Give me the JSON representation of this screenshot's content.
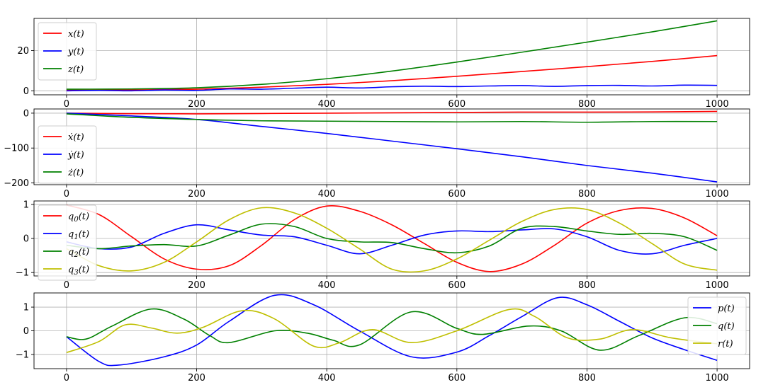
{
  "chart_data": [
    {
      "type": "line",
      "grid": true,
      "legend": "upper-left",
      "xlim": [
        -50,
        1050
      ],
      "ylim": [
        -2,
        36
      ],
      "xticks": [
        0,
        200,
        400,
        600,
        800,
        1000
      ],
      "yticks": [
        0,
        20
      ],
      "series": [
        {
          "name": "x(t)",
          "color": "#ff0000",
          "x": [
            0,
            100,
            200,
            300,
            400,
            500,
            600,
            700,
            800,
            900,
            1000
          ],
          "y": [
            0.3,
            0.4,
            0.8,
            1.8,
            3.2,
            5.0,
            7.2,
            9.6,
            12.0,
            14.6,
            17.5
          ]
        },
        {
          "name": "y(t)",
          "color": "#0000ff",
          "x": [
            0,
            50,
            100,
            150,
            200,
            250,
            300,
            350,
            400,
            450,
            500,
            550,
            600,
            650,
            700,
            750,
            800,
            850,
            900,
            950,
            1000
          ],
          "y": [
            0,
            0.2,
            0,
            0.4,
            0.2,
            0.9,
            0.8,
            1.3,
            1.8,
            1.4,
            2.0,
            2.3,
            2.1,
            2.4,
            2.6,
            2.2,
            2.6,
            2.7,
            2.4,
            2.8,
            2.7
          ]
        },
        {
          "name": "z(t)",
          "color": "#008000",
          "x": [
            0,
            100,
            200,
            300,
            400,
            500,
            600,
            700,
            800,
            900,
            1000
          ],
          "y": [
            0.8,
            0.9,
            1.5,
            3.2,
            6.0,
            9.8,
            14.3,
            19.2,
            24.2,
            29.3,
            34.8
          ]
        }
      ]
    },
    {
      "type": "line",
      "grid": true,
      "legend": "lower-left",
      "xlim": [
        -50,
        1050
      ],
      "ylim": [
        -205,
        12
      ],
      "xticks": [
        0,
        200,
        400,
        600,
        800,
        1000
      ],
      "yticks": [
        0,
        -100,
        -200
      ],
      "series": [
        {
          "name": "ẋ(t)",
          "color": "#ff0000",
          "x": [
            0,
            100,
            200,
            300,
            400,
            500,
            600,
            700,
            800,
            900,
            1000
          ],
          "y": [
            0,
            -1.5,
            -2,
            -1,
            0,
            1,
            2,
            3,
            3,
            3.5,
            5
          ]
        },
        {
          "name": "ẏ(t)",
          "color": "#0000ff",
          "x": [
            0,
            100,
            200,
            300,
            400,
            500,
            600,
            700,
            800,
            900,
            1000
          ],
          "y": [
            0,
            -8,
            -18,
            -38,
            -58,
            -80,
            -102,
            -125,
            -150,
            -172,
            -197
          ]
        },
        {
          "name": "ż(t)",
          "color": "#008000",
          "x": [
            0,
            100,
            200,
            300,
            400,
            500,
            600,
            700,
            800,
            900,
            1000
          ],
          "y": [
            -2,
            -12,
            -18,
            -22,
            -23,
            -24,
            -25,
            -24,
            -26,
            -24,
            -24
          ]
        }
      ]
    },
    {
      "type": "line",
      "grid": true,
      "legend": "upper-left",
      "xlim": [
        -50,
        1050
      ],
      "ylim": [
        -1.1,
        1.1
      ],
      "xticks": [
        0,
        200,
        400,
        600,
        800,
        1000
      ],
      "yticks": [
        1,
        0,
        -1
      ],
      "series": [
        {
          "name": "q0(t)",
          "label_main": "q",
          "label_sub": "0",
          "color": "#ff0000",
          "x": [
            0,
            50,
            100,
            150,
            200,
            250,
            300,
            350,
            400,
            450,
            500,
            550,
            600,
            650,
            700,
            750,
            800,
            850,
            900,
            950,
            1000
          ],
          "y": [
            0.98,
            0.7,
            0.05,
            -0.6,
            -0.9,
            -0.8,
            -0.2,
            0.55,
            0.95,
            0.8,
            0.4,
            -0.15,
            -0.7,
            -0.97,
            -0.75,
            -0.2,
            0.45,
            0.82,
            0.88,
            0.6,
            0.08
          ]
        },
        {
          "name": "q1(t)",
          "label_main": "q",
          "label_sub": "1",
          "color": "#0000ff",
          "x": [
            0,
            50,
            100,
            150,
            200,
            250,
            300,
            350,
            400,
            450,
            500,
            550,
            600,
            650,
            700,
            750,
            800,
            850,
            900,
            950,
            1000
          ],
          "y": [
            -0.1,
            -0.3,
            -0.25,
            0.15,
            0.4,
            0.25,
            0.1,
            0.05,
            -0.2,
            -0.45,
            -0.2,
            0.1,
            0.22,
            0.2,
            0.25,
            0.28,
            0.05,
            -0.35,
            -0.45,
            -0.2,
            0.0
          ]
        },
        {
          "name": "q2(t)",
          "label_main": "q",
          "label_sub": "2",
          "color": "#008000",
          "x": [
            0,
            50,
            100,
            150,
            200,
            250,
            300,
            350,
            400,
            450,
            500,
            550,
            600,
            650,
            700,
            750,
            800,
            850,
            900,
            950,
            1000
          ],
          "y": [
            -0.2,
            -0.3,
            -0.22,
            -0.18,
            -0.22,
            0.1,
            0.42,
            0.35,
            0.0,
            -0.1,
            -0.12,
            -0.3,
            -0.42,
            -0.22,
            0.3,
            0.35,
            0.22,
            0.12,
            0.15,
            0.05,
            -0.35
          ]
        },
        {
          "name": "q3(t)",
          "label_main": "q",
          "label_sub": "3",
          "color": "#bfbf00",
          "x": [
            0,
            50,
            100,
            150,
            200,
            250,
            300,
            350,
            400,
            450,
            500,
            550,
            600,
            650,
            700,
            750,
            800,
            850,
            900,
            950,
            1000
          ],
          "y": [
            -0.3,
            -0.8,
            -0.95,
            -0.7,
            -0.1,
            0.55,
            0.9,
            0.75,
            0.3,
            -0.3,
            -0.9,
            -0.95,
            -0.6,
            -0.05,
            0.5,
            0.85,
            0.85,
            0.45,
            -0.15,
            -0.75,
            -0.93
          ]
        }
      ]
    },
    {
      "type": "line",
      "grid": true,
      "legend": "upper-right",
      "xlim": [
        -50,
        1050
      ],
      "ylim": [
        -1.6,
        1.6
      ],
      "xticks": [
        0,
        200,
        400,
        600,
        800,
        1000
      ],
      "yticks": [
        1,
        0,
        -1
      ],
      "series": [
        {
          "name": "p(t)",
          "color": "#0000ff",
          "x": [
            0,
            50,
            80,
            150,
            200,
            250,
            320,
            380,
            450,
            530,
            600,
            650,
            700,
            755,
            800,
            850,
            900,
            950,
            1000
          ],
          "y": [
            -0.25,
            -1.3,
            -1.45,
            -1.1,
            -0.6,
            0.4,
            1.5,
            1.1,
            0.0,
            -1.1,
            -0.9,
            -0.2,
            0.6,
            1.4,
            1.1,
            0.4,
            -0.3,
            -0.8,
            -1.25
          ]
        },
        {
          "name": "q(t)",
          "color": "#008000",
          "x": [
            0,
            30,
            70,
            130,
            180,
            220,
            250,
            320,
            370,
            410,
            450,
            530,
            600,
            640,
            710,
            760,
            820,
            880,
            950,
            1000
          ],
          "y": [
            -0.25,
            -0.35,
            0.2,
            0.92,
            0.5,
            -0.2,
            -0.5,
            0.0,
            -0.1,
            -0.4,
            -0.6,
            0.8,
            0.1,
            -0.15,
            0.2,
            0.0,
            -0.82,
            -0.2,
            0.55,
            0.3
          ]
        },
        {
          "name": "r(t)",
          "color": "#bfbf00",
          "x": [
            0,
            50,
            90,
            130,
            170,
            210,
            270,
            320,
            380,
            420,
            470,
            530,
            600,
            680,
            720,
            770,
            820,
            870,
            930,
            1000
          ],
          "y": [
            -0.92,
            -0.45,
            0.25,
            0.12,
            -0.1,
            0.15,
            0.85,
            0.5,
            -0.65,
            -0.5,
            0.05,
            -0.5,
            0.0,
            0.9,
            0.6,
            -0.3,
            -0.35,
            0.05,
            -0.3,
            -0.55
          ]
        }
      ]
    }
  ]
}
